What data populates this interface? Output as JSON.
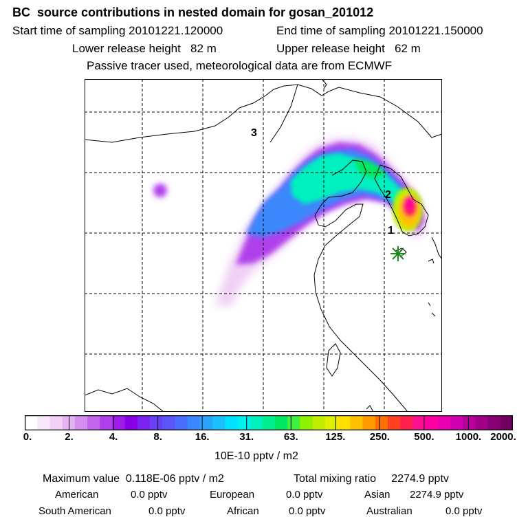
{
  "header": {
    "title": "BC  source contributions in nested domain for gosan_201012",
    "start_label": "Start time of sampling 20101221.120000",
    "end_label": "End time of sampling 20101221.150000",
    "lower_height": "Lower release height   82 m",
    "upper_height": "Upper release height   62 m",
    "tracer_note": "Passive tracer used, meteorological data are from ECMWF"
  },
  "map": {
    "region_labels": [
      "1",
      "2",
      "3"
    ],
    "receptor_marker": "star-icon",
    "colors": {
      "grid": "#000000",
      "coast": "#000000",
      "receptor": "#1a8a1a"
    }
  },
  "colorbar": {
    "tick_labels": [
      "0.",
      "2.",
      "4.",
      "8.",
      "16.",
      "31.",
      "63.",
      "125.",
      "250.",
      "500.",
      "1000.",
      "2000."
    ],
    "unit": "10E-10 pptv / m2",
    "colors": [
      "#ffffff",
      "#f8e8fa",
      "#f0d0f5",
      "#e6b3f2",
      "#d48ef0",
      "#c266ee",
      "#b040ec",
      "#9d1ce8",
      "#8a00e6",
      "#7a22f0",
      "#6a40f5",
      "#5a55f8",
      "#4a6cfb",
      "#3a88fc",
      "#2aa4fd",
      "#1ac0fe",
      "#00e0ff",
      "#00f0f0",
      "#00f0c0",
      "#00f090",
      "#00e860",
      "#40f040",
      "#90f000",
      "#c0f000",
      "#e0ee00",
      "#ffe000",
      "#ffc000",
      "#ff9a00",
      "#ff7000",
      "#ff4020",
      "#ff2050",
      "#ff1090",
      "#ff00a0",
      "#e800b0",
      "#d000b0",
      "#b8009c",
      "#a00088",
      "#880074",
      "#700060"
    ]
  },
  "stats": {
    "max_line": "Maximum value  0.118E-06 pptv / m2",
    "total_line": "Total mixing ratio     2274.9 pptv",
    "american_label": "American",
    "american_value": "0.0 pptv",
    "european_label": "European",
    "european_value": "0.0 pptv",
    "asian_label": "Asian",
    "asian_value": "2274.9 pptv",
    "south_american_label": "South American",
    "south_american_value": "0.0 pptv",
    "african_label": "African",
    "african_value": "0.0 pptv",
    "australian_label": "Australian",
    "australian_value": "0.0 pptv"
  }
}
